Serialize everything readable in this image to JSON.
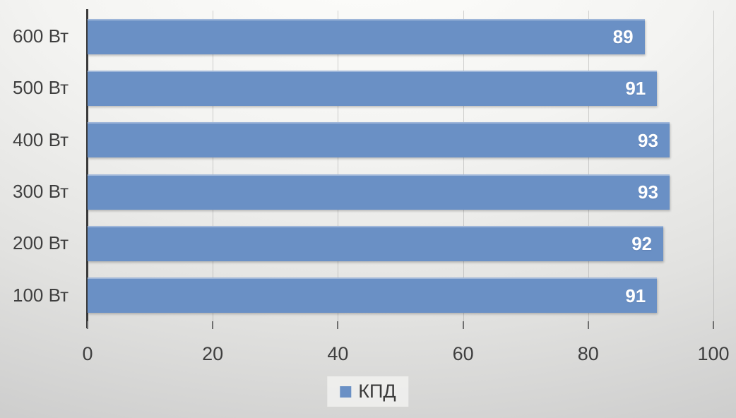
{
  "chart_data": {
    "type": "bar",
    "orientation": "horizontal",
    "title": "",
    "categories": [
      "600 Вт",
      "500 Вт",
      "400 Вт",
      "300 Вт",
      "200 Вт",
      "100 Вт"
    ],
    "series": [
      {
        "name": "КПД",
        "values": [
          89,
          91,
          93,
          93,
          92,
          91
        ]
      }
    ],
    "data_labels": [
      "89",
      "91",
      "93",
      "93",
      "92",
      "91"
    ],
    "xlabel": "",
    "ylabel": "",
    "xlim": [
      0,
      100
    ],
    "xticks": [
      0,
      20,
      40,
      60,
      80,
      100
    ],
    "grid": "vertical",
    "legend_position": "bottom-center",
    "colors": {
      "bar": "#6a90c5",
      "bar_label_text": "#ffffff",
      "axis_line": "#3a3a3a",
      "tick_text": "#3f3f3f",
      "category_text": "#3f3f3f"
    }
  },
  "legend": {
    "label": "КПД"
  }
}
